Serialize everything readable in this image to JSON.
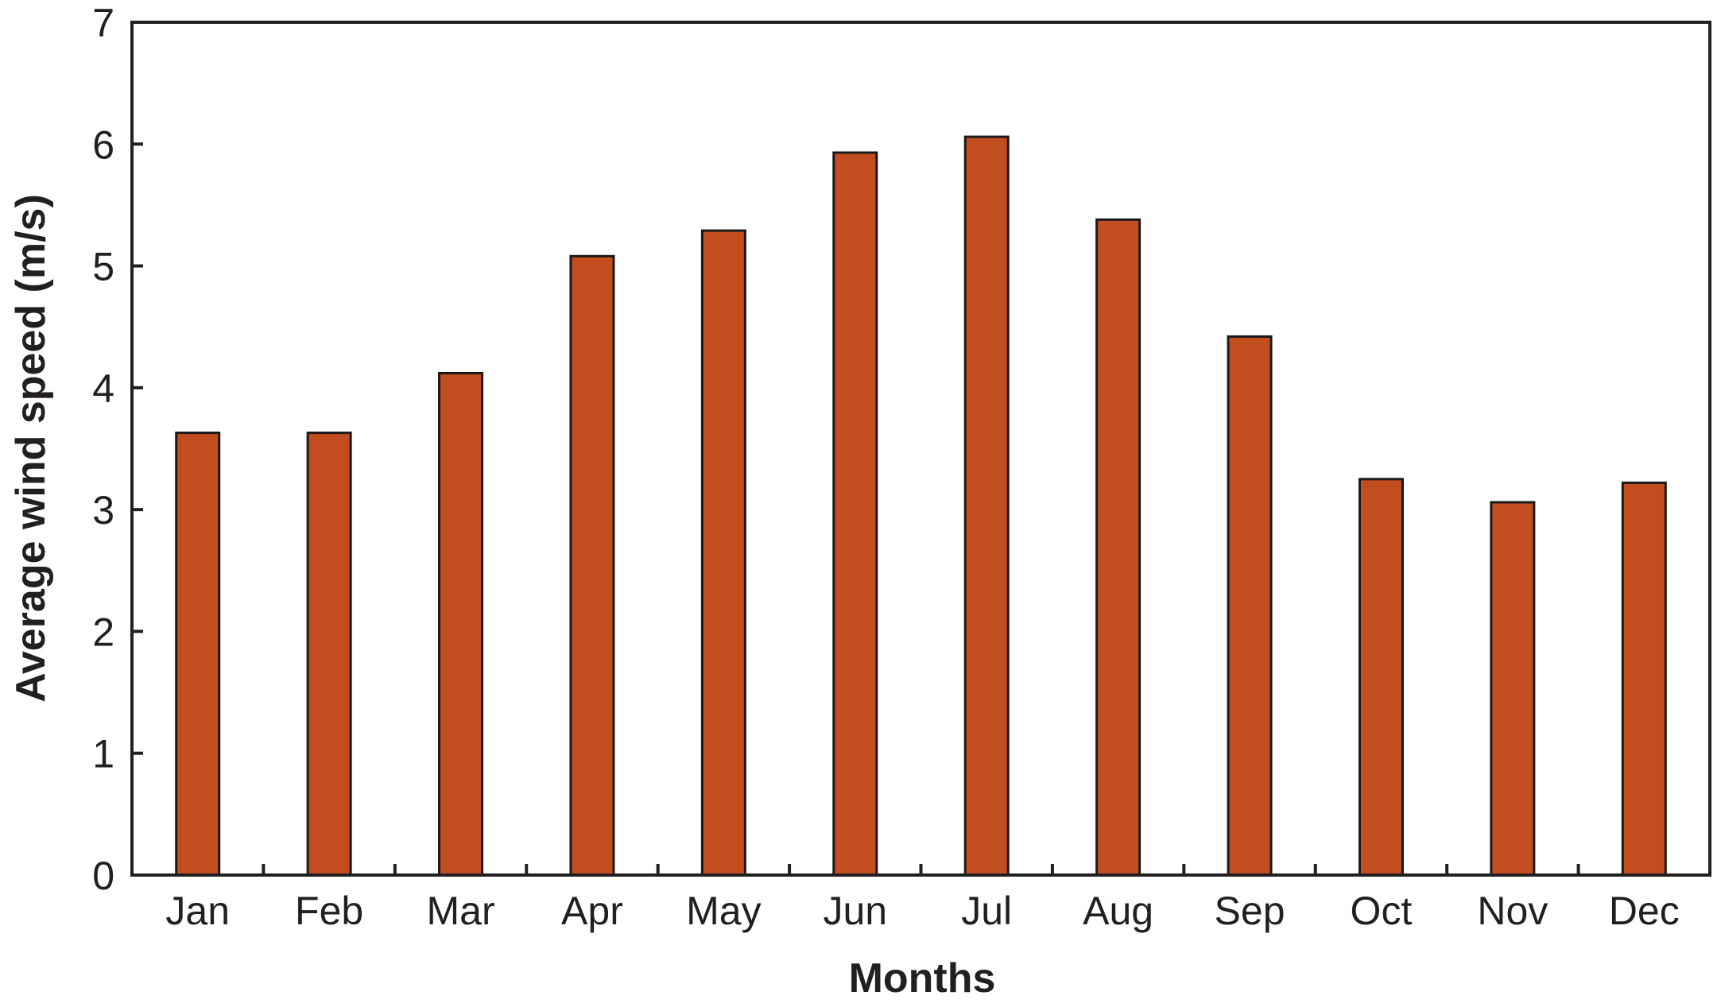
{
  "chart_data": {
    "type": "bar",
    "title": "",
    "xlabel": "Months",
    "ylabel": "Average wind speed (m/s)",
    "categories": [
      "Jan",
      "Feb",
      "Mar",
      "Apr",
      "May",
      "Jun",
      "Jul",
      "Aug",
      "Sep",
      "Oct",
      "Nov",
      "Dec"
    ],
    "values": [
      3.63,
      3.63,
      4.12,
      5.08,
      5.29,
      5.93,
      6.06,
      5.38,
      4.42,
      3.25,
      3.06,
      3.22
    ],
    "ylim": [
      0,
      7
    ],
    "yticks": [
      "0",
      "1",
      "2",
      "3",
      "4",
      "5",
      "6",
      "7"
    ],
    "grid": false,
    "legend": "none",
    "colors": {
      "bar_fill": "#c24e20",
      "bar_stroke": "#1a1a1a",
      "axis": "#231f20"
    }
  }
}
